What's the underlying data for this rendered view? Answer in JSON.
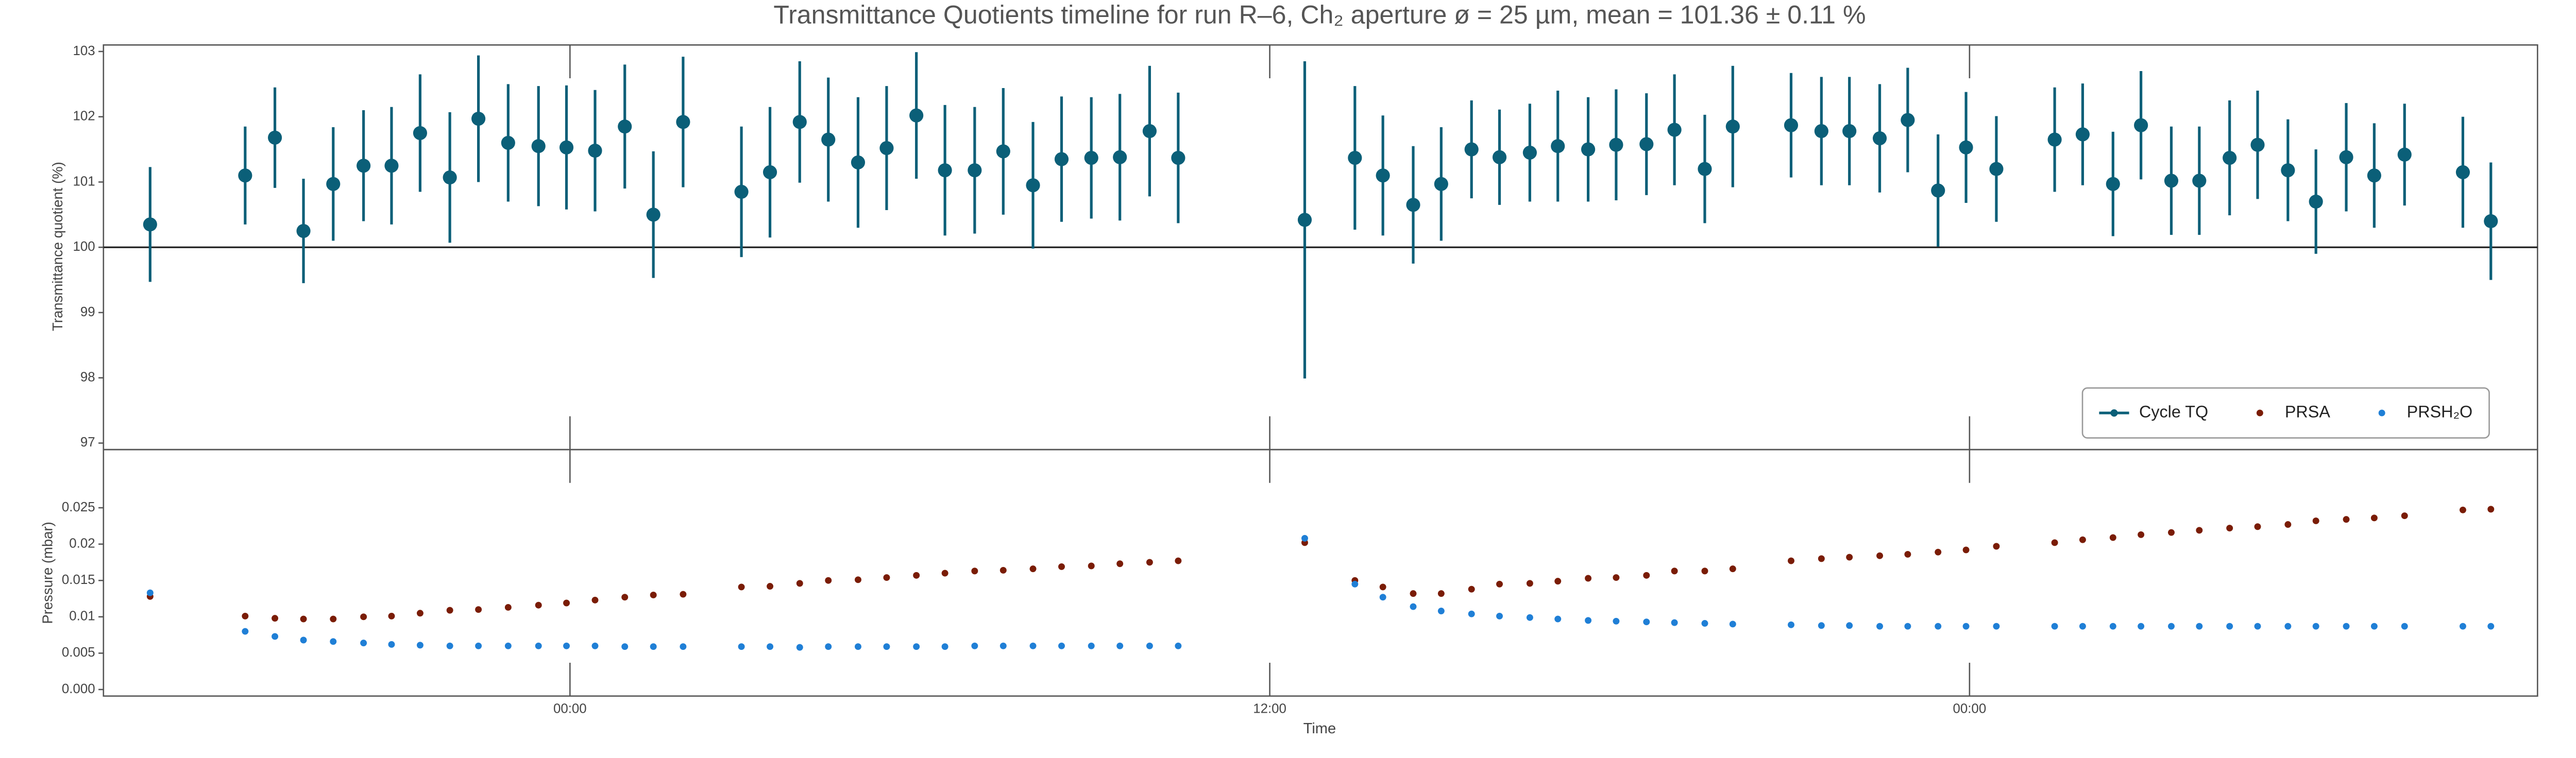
{
  "chart_data": [
    {
      "type": "errorbar",
      "title": "Transmittance Quotients timeline for run R–6, Ch₂ aperture ø = 25 µm, mean = 101.36 ± 0.11 %",
      "ylabel": "Transmittance quotient (%)",
      "xlim": [
        -8,
        33.74
      ],
      "ylim": [
        96.9,
        103.1
      ],
      "yticks": [
        97,
        98,
        99,
        100,
        101,
        102,
        103
      ],
      "hline": 100,
      "legend": "lower right",
      "x": [
        -7.2,
        -5.57,
        -5.06,
        -4.57,
        -4.06,
        -3.54,
        -3.06,
        -2.57,
        -2.06,
        -1.57,
        -1.06,
        -0.54,
        -0.06,
        0.43,
        0.94,
        1.43,
        1.94,
        2.94,
        3.43,
        3.94,
        4.43,
        4.94,
        5.43,
        5.94,
        6.43,
        6.94,
        7.43,
        7.94,
        8.43,
        8.94,
        9.43,
        9.94,
        10.43,
        12.6,
        13.46,
        13.94,
        14.46,
        14.94,
        15.46,
        15.94,
        16.46,
        16.94,
        17.46,
        17.94,
        18.46,
        18.94,
        19.46,
        19.94,
        20.94,
        21.46,
        21.94,
        22.46,
        22.94,
        23.46,
        23.94,
        24.46,
        25.46,
        25.94,
        26.46,
        26.94,
        27.46,
        27.94,
        28.46,
        28.94,
        29.46,
        29.94,
        30.46,
        30.94,
        31.46,
        32.46,
        32.94
      ],
      "series": [
        {
          "name": "Cycle TQ",
          "color": "#0b5f78",
          "values": [
            100.35,
            101.1,
            101.68,
            100.25,
            100.97,
            101.25,
            101.25,
            101.75,
            101.07,
            101.97,
            101.6,
            101.55,
            101.53,
            101.48,
            101.85,
            100.5,
            101.92,
            100.85,
            101.15,
            101.92,
            101.65,
            101.3,
            101.52,
            102.02,
            101.18,
            101.18,
            101.47,
            100.95,
            101.35,
            101.37,
            101.38,
            101.78,
            101.37,
            100.42,
            101.37,
            101.1,
            100.65,
            100.97,
            101.5,
            101.38,
            101.45,
            101.55,
            101.5,
            101.57,
            101.58,
            101.8,
            101.2,
            101.85,
            101.87,
            101.78,
            101.78,
            101.67,
            101.95,
            100.87,
            101.53,
            101.2,
            101.65,
            101.73,
            100.97,
            101.87,
            101.02,
            101.02,
            101.37,
            101.57,
            101.18,
            100.7,
            101.38,
            101.1,
            101.42,
            101.15,
            100.4
          ],
          "errors": [
            0.88,
            0.75,
            0.77,
            0.8,
            0.87,
            0.85,
            0.9,
            0.9,
            1.0,
            0.97,
            0.9,
            0.92,
            0.95,
            0.93,
            0.95,
            0.97,
            1.0,
            1.0,
            1.0,
            0.93,
            0.95,
            1.0,
            0.95,
            0.97,
            1.0,
            0.97,
            0.97,
            0.97,
            0.96,
            0.93,
            0.97,
            1.0,
            1.0,
            2.43,
            1.1,
            0.92,
            0.9,
            0.87,
            0.75,
            0.73,
            0.75,
            0.85,
            0.8,
            0.85,
            0.78,
            0.85,
            0.83,
            0.93,
            0.8,
            0.83,
            0.83,
            0.83,
            0.8,
            0.86,
            0.85,
            0.81,
            0.8,
            0.78,
            0.8,
            0.83,
            0.83,
            0.83,
            0.88,
            0.83,
            0.78,
            0.8,
            0.83,
            0.8,
            0.78,
            0.85,
            0.9
          ]
        }
      ]
    },
    {
      "type": "scatter",
      "ylabel": "Pressure (mbar)",
      "xlabel": "Time",
      "xlim": [
        -8,
        33.74
      ],
      "xticks": [
        {
          "value": 0,
          "label": "00:00"
        },
        {
          "value": 12,
          "label": "12:00"
        },
        {
          "value": 24,
          "label": "00:00"
        }
      ],
      "ylim": [
        -0.0009,
        0.033
      ],
      "yticks": [
        {
          "value": 0,
          "label": "0.000"
        },
        0.005,
        0.01,
        0.015,
        0.02,
        0.025
      ],
      "x": [
        -7.2,
        -5.57,
        -5.06,
        -4.57,
        -4.06,
        -3.54,
        -3.06,
        -2.57,
        -2.06,
        -1.57,
        -1.06,
        -0.54,
        -0.06,
        0.43,
        0.94,
        1.43,
        1.94,
        2.94,
        3.43,
        3.94,
        4.43,
        4.94,
        5.43,
        5.94,
        6.43,
        6.94,
        7.43,
        7.94,
        8.43,
        8.94,
        9.43,
        9.94,
        10.43,
        12.6,
        13.46,
        13.94,
        14.46,
        14.94,
        15.46,
        15.94,
        16.46,
        16.94,
        17.46,
        17.94,
        18.46,
        18.94,
        19.46,
        19.94,
        20.94,
        21.46,
        21.94,
        22.46,
        22.94,
        23.46,
        23.94,
        24.46,
        25.46,
        25.94,
        26.46,
        26.94,
        27.46,
        27.94,
        28.46,
        28.94,
        29.46,
        29.94,
        30.46,
        30.94,
        31.46,
        32.46,
        32.94
      ],
      "series": [
        {
          "name": "PRSA",
          "color": "#7a1c05",
          "values": [
            0.0128,
            0.0101,
            0.0098,
            0.0097,
            0.0097,
            0.01,
            0.0101,
            0.0105,
            0.0109,
            0.011,
            0.0113,
            0.0116,
            0.0119,
            0.0123,
            0.0127,
            0.013,
            0.0131,
            0.0141,
            0.0142,
            0.0146,
            0.015,
            0.0151,
            0.0154,
            0.0157,
            0.016,
            0.0163,
            0.0164,
            0.0166,
            0.0169,
            0.017,
            0.0173,
            0.0175,
            0.0177,
            0.0202,
            0.015,
            0.0141,
            0.0132,
            0.0132,
            0.0138,
            0.0145,
            0.0146,
            0.0149,
            0.0153,
            0.0154,
            0.0157,
            0.0163,
            0.0163,
            0.0166,
            0.0177,
            0.018,
            0.0182,
            0.0184,
            0.0186,
            0.0189,
            0.0192,
            0.0197,
            0.0202,
            0.0206,
            0.0209,
            0.0213,
            0.0216,
            0.0219,
            0.0222,
            0.0224,
            0.0227,
            0.0232,
            0.0234,
            0.0236,
            0.0239,
            0.0247,
            0.0248
          ]
        },
        {
          "name": "PRSH₂O",
          "color": "#1f7fd6",
          "values": [
            0.0133,
            0.008,
            0.0073,
            0.0068,
            0.0066,
            0.0064,
            0.0062,
            0.0061,
            0.006,
            0.006,
            0.006,
            0.006,
            0.006,
            0.006,
            0.0059,
            0.0059,
            0.0059,
            0.0059,
            0.0059,
            0.0058,
            0.0059,
            0.0059,
            0.0059,
            0.0059,
            0.0059,
            0.006,
            0.006,
            0.006,
            0.006,
            0.006,
            0.006,
            0.006,
            0.006,
            0.0208,
            0.0145,
            0.0127,
            0.0114,
            0.0108,
            0.0104,
            0.0101,
            0.0099,
            0.0097,
            0.0095,
            0.0094,
            0.0093,
            0.0092,
            0.0091,
            0.009,
            0.0089,
            0.0088,
            0.0088,
            0.0087,
            0.0087,
            0.0087,
            0.0087,
            0.0087,
            0.0087,
            0.0087,
            0.0087,
            0.0087,
            0.0087,
            0.0087,
            0.0087,
            0.0087,
            0.0087,
            0.0087,
            0.0087,
            0.0087,
            0.0087,
            0.0087,
            0.0087
          ]
        }
      ]
    }
  ]
}
